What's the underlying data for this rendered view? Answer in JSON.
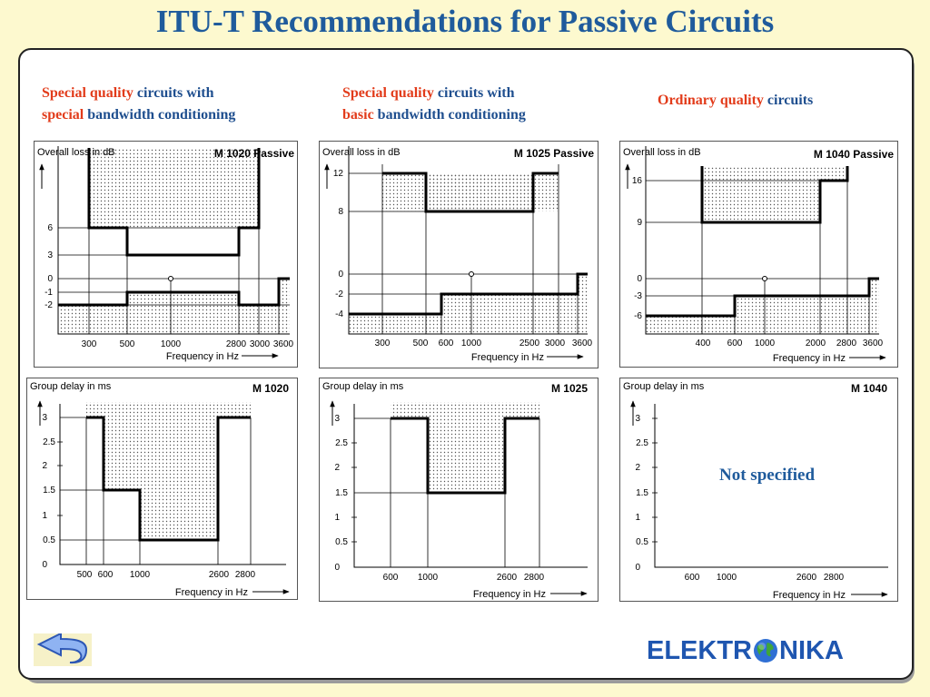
{
  "title": "ITU-T Recommendations for Passive Circuits",
  "columns": [
    {
      "line1": [
        {
          "t": "Special quality",
          "red": true
        },
        {
          "t": " circuits with",
          "red": false
        }
      ],
      "line2": [
        {
          "t": "special",
          "red": true
        },
        {
          "t": " bandwidth conditioning",
          "red": false
        }
      ]
    },
    {
      "line1": [
        {
          "t": "Special quality",
          "red": true
        },
        {
          "t": " circuits with",
          "red": false
        }
      ],
      "line2": [
        {
          "t": "basic",
          "red": true
        },
        {
          "t": " bandwidth conditioning",
          "red": false
        }
      ]
    },
    {
      "line1": [
        {
          "t": "Ordinary quality",
          "red": true
        },
        {
          "t": " circuits",
          "red": false
        }
      ],
      "line2": []
    }
  ],
  "chart_data": [
    {
      "type": "line",
      "title": "M 1020 Passive",
      "ylabel": "Overall loss in dB",
      "xlabel": "Frequency in Hz",
      "x_ticks": [
        "300",
        "500",
        "1000",
        "2800",
        "3000",
        "3600"
      ],
      "y_ticks": [
        "6",
        "3",
        "0",
        "-1",
        "-2"
      ],
      "upper_limit": [
        {
          "x": 300,
          "y": "∞"
        },
        {
          "x": 300,
          "y": 6
        },
        {
          "x": 500,
          "y": 6
        },
        {
          "x": 500,
          "y": 3
        },
        {
          "x": 2800,
          "y": 3
        },
        {
          "x": 2800,
          "y": 6
        },
        {
          "x": 3000,
          "y": 6
        },
        {
          "x": 3000,
          "y": "∞"
        }
      ],
      "lower_limit": [
        {
          "x": "<300",
          "y": -2
        },
        {
          "x": 500,
          "y": -2
        },
        {
          "x": 500,
          "y": -1
        },
        {
          "x": 2800,
          "y": -1
        },
        {
          "x": 2800,
          "y": -2
        },
        {
          "x": 3600,
          "y": -2
        },
        {
          "x": 3600,
          "y": 0
        }
      ]
    },
    {
      "type": "line",
      "title": "M 1025 Passive",
      "ylabel": "Overall loss in dB",
      "xlabel": "Frequency in Hz",
      "x_ticks": [
        "300",
        "500",
        "600",
        "1000",
        "2500",
        "3000",
        "3600"
      ],
      "y_ticks": [
        "12",
        "8",
        "0",
        "-2",
        "-4"
      ],
      "upper_limit": [
        {
          "x": 300,
          "y": 12
        },
        {
          "x": 500,
          "y": 12
        },
        {
          "x": 500,
          "y": 8
        },
        {
          "x": 2500,
          "y": 8
        },
        {
          "x": 2500,
          "y": 12
        },
        {
          "x": 3000,
          "y": 12
        }
      ],
      "lower_limit": [
        {
          "x": "<300",
          "y": -4
        },
        {
          "x": 600,
          "y": -4
        },
        {
          "x": 600,
          "y": -2
        },
        {
          "x": 3600,
          "y": -2
        },
        {
          "x": 3600,
          "y": 0
        }
      ]
    },
    {
      "type": "line",
      "title": "M 1040 Passive",
      "ylabel": "Overall loss in dB",
      "xlabel": "Frequency in Hz",
      "x_ticks": [
        "400",
        "600",
        "1000",
        "2000",
        "2800",
        "3600"
      ],
      "y_ticks": [
        "16",
        "9",
        "0",
        "-3",
        "-6"
      ],
      "upper_limit": [
        {
          "x": 400,
          "y": "∞"
        },
        {
          "x": 400,
          "y": 9
        },
        {
          "x": 2000,
          "y": 9
        },
        {
          "x": 2000,
          "y": 16
        },
        {
          "x": 2800,
          "y": 16
        },
        {
          "x": 2800,
          "y": "∞"
        }
      ],
      "lower_limit": [
        {
          "x": "<400",
          "y": -6
        },
        {
          "x": 600,
          "y": -6
        },
        {
          "x": 600,
          "y": -3
        },
        {
          "x": 3600,
          "y": -3
        },
        {
          "x": 3600,
          "y": 0
        }
      ]
    },
    {
      "type": "line",
      "title": "M 1020",
      "ylabel": "Group delay in ms",
      "xlabel": "Frequency in Hz",
      "x_ticks": [
        "500",
        "600",
        "1000",
        "2600",
        "2800"
      ],
      "y_ticks": [
        "3",
        "2.5",
        "2",
        "1.5",
        "1",
        "0.5",
        "0"
      ],
      "upper_limit": [
        {
          "x": 500,
          "y": 3
        },
        {
          "x": 600,
          "y": 3
        },
        {
          "x": 600,
          "y": 1.5
        },
        {
          "x": 1000,
          "y": 1.5
        },
        {
          "x": 1000,
          "y": 0.5
        },
        {
          "x": 2600,
          "y": 0.5
        },
        {
          "x": 2600,
          "y": 3
        },
        {
          "x": 2800,
          "y": 3
        }
      ]
    },
    {
      "type": "line",
      "title": "M 1025",
      "ylabel": "Group delay in ms",
      "xlabel": "Frequency in Hz",
      "x_ticks": [
        "600",
        "1000",
        "2600",
        "2800"
      ],
      "y_ticks": [
        "3",
        "2.5",
        "2",
        "1.5",
        "1",
        "0.5",
        "0"
      ],
      "upper_limit": [
        {
          "x": 600,
          "y": 3
        },
        {
          "x": 1000,
          "y": 3
        },
        {
          "x": 1000,
          "y": 1.5
        },
        {
          "x": 2600,
          "y": 1.5
        },
        {
          "x": 2600,
          "y": 3
        },
        {
          "x": 2800,
          "y": 3
        }
      ]
    },
    {
      "type": "line",
      "title": "M 1040",
      "ylabel": "Group delay in ms",
      "xlabel": "Frequency in Hz",
      "x_ticks": [
        "600",
        "1000",
        "2600",
        "2800"
      ],
      "y_ticks": [
        "3",
        "2.5",
        "2",
        "1.5",
        "1",
        "0.5",
        "0"
      ],
      "note": "Not specified"
    }
  ],
  "not_specified": "Not specified",
  "logo": {
    "left": "ELEKTR",
    "right": "NIKA"
  },
  "colors": {
    "title": "#1f5b9c",
    "accent": "#e23b1a",
    "text": "#1f4f8f",
    "background": "#fdf9cf"
  },
  "icons": {
    "back": "back-arrow-icon",
    "globe": "globe-icon"
  }
}
